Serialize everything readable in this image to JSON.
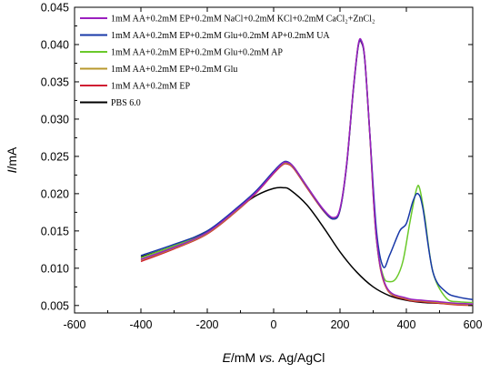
{
  "chart_data": {
    "type": "line",
    "xlabel_italic": "E",
    "xlabel_unit": "/mM ",
    "xlabel_vs": "vs.",
    "xlabel_ref": " Ag/AgCl",
    "ylabel_italic": "I",
    "ylabel_unit": "/mA",
    "xlim": [
      -600,
      600
    ],
    "ylim": [
      0.004,
      0.045
    ],
    "xticks": [
      "-600",
      "-400",
      "-200",
      "0",
      "200",
      "400",
      "600"
    ],
    "yticks": [
      "0.005",
      "0.010",
      "0.015",
      "0.020",
      "0.025",
      "0.030",
      "0.035",
      "0.040",
      "0.045"
    ],
    "legend_position": "top-left",
    "series": [
      {
        "name": "1mM AA+0.2mM EP+0.2mM NaCl+0.2mM KCl+0.2mM CaCl₂+ZnCl₂",
        "color": "#9b1fbf",
        "x": [
          -400,
          -300,
          -200,
          -100,
          -50,
          0,
          25,
          40,
          60,
          100,
          150,
          180,
          200,
          220,
          240,
          255,
          265,
          275,
          290,
          310,
          340,
          400,
          450,
          500,
          550,
          600
        ],
        "y": [
          0.0112,
          0.0128,
          0.0148,
          0.0183,
          0.0203,
          0.0228,
          0.024,
          0.0242,
          0.0236,
          0.021,
          0.0179,
          0.0168,
          0.018,
          0.024,
          0.034,
          0.04,
          0.0405,
          0.038,
          0.028,
          0.014,
          0.0075,
          0.006,
          0.0057,
          0.0055,
          0.0053,
          0.0052
        ]
      },
      {
        "name": "1mM AA+0.2mM EP+0.2mM Glu+0.2mM AP+0.2mM UA",
        "color": "#1838a8",
        "x": [
          -400,
          -300,
          -200,
          -100,
          -50,
          0,
          25,
          40,
          60,
          100,
          150,
          180,
          200,
          220,
          240,
          255,
          265,
          275,
          290,
          310,
          330,
          350,
          380,
          400,
          420,
          435,
          450,
          480,
          520,
          560,
          600
        ],
        "y": [
          0.0117,
          0.0132,
          0.015,
          0.0185,
          0.0205,
          0.023,
          0.0241,
          0.0243,
          0.0236,
          0.021,
          0.0178,
          0.0166,
          0.0178,
          0.0238,
          0.0338,
          0.0398,
          0.0403,
          0.0378,
          0.028,
          0.015,
          0.0102,
          0.0118,
          0.015,
          0.016,
          0.019,
          0.02,
          0.018,
          0.0095,
          0.0068,
          0.0061,
          0.0058
        ]
      },
      {
        "name": "1mM AA+0.2mM EP+0.2mM Glu+0.2mM AP",
        "color": "#6ac92a",
        "x": [
          -400,
          -300,
          -200,
          -100,
          -50,
          0,
          25,
          40,
          60,
          100,
          150,
          180,
          200,
          220,
          240,
          255,
          265,
          275,
          290,
          310,
          330,
          350,
          370,
          390,
          410,
          430,
          440,
          455,
          480,
          520,
          560,
          600
        ],
        "y": [
          0.0114,
          0.013,
          0.0149,
          0.0184,
          0.0204,
          0.0229,
          0.024,
          0.0242,
          0.0236,
          0.021,
          0.0178,
          0.0166,
          0.0179,
          0.0239,
          0.0339,
          0.0399,
          0.0404,
          0.0379,
          0.028,
          0.014,
          0.009,
          0.0082,
          0.0087,
          0.011,
          0.016,
          0.0205,
          0.0207,
          0.017,
          0.0095,
          0.006,
          0.0055,
          0.0054
        ]
      },
      {
        "name": "1mM AA+0.2mM EP+0.2mM Glu",
        "color": "#b8982c",
        "x": [
          -400,
          -300,
          -200,
          -100,
          -50,
          0,
          25,
          40,
          60,
          100,
          150,
          180,
          200,
          220,
          240,
          255,
          265,
          275,
          290,
          310,
          340,
          400,
          450,
          500,
          550,
          600
        ],
        "y": [
          0.0111,
          0.0127,
          0.0147,
          0.0182,
          0.0203,
          0.0228,
          0.0239,
          0.0241,
          0.0235,
          0.0209,
          0.0178,
          0.0167,
          0.0179,
          0.0239,
          0.0339,
          0.0399,
          0.0404,
          0.0379,
          0.0279,
          0.0139,
          0.0074,
          0.0059,
          0.0056,
          0.0054,
          0.0052,
          0.0051
        ]
      },
      {
        "name": "1mM AA+0.2mM EP",
        "color": "#d01e32",
        "x": [
          -400,
          -300,
          -200,
          -100,
          -50,
          0,
          25,
          40,
          60,
          100,
          150,
          180,
          200,
          220,
          240,
          255,
          265,
          275,
          290,
          310,
          340,
          400,
          450,
          500,
          550,
          600
        ],
        "y": [
          0.0109,
          0.0126,
          0.0146,
          0.0181,
          0.0202,
          0.0227,
          0.0238,
          0.024,
          0.0234,
          0.0208,
          0.0177,
          0.0166,
          0.0178,
          0.0238,
          0.0338,
          0.0398,
          0.0402,
          0.0378,
          0.0278,
          0.0138,
          0.0073,
          0.0058,
          0.0055,
          0.0053,
          0.0051,
          0.005
        ]
      },
      {
        "name": "PBS 6.0",
        "color": "#000000",
        "x": [
          -400,
          -300,
          -200,
          -150,
          -100,
          -50,
          0,
          30,
          50,
          100,
          150,
          200,
          250,
          300,
          350,
          400,
          450,
          500,
          550,
          600
        ],
        "y": [
          0.0115,
          0.013,
          0.015,
          0.0166,
          0.0183,
          0.0198,
          0.0207,
          0.0208,
          0.0205,
          0.0185,
          0.0155,
          0.0122,
          0.0095,
          0.0075,
          0.0063,
          0.0057,
          0.0054,
          0.0053,
          0.0052,
          0.0051
        ]
      }
    ]
  }
}
